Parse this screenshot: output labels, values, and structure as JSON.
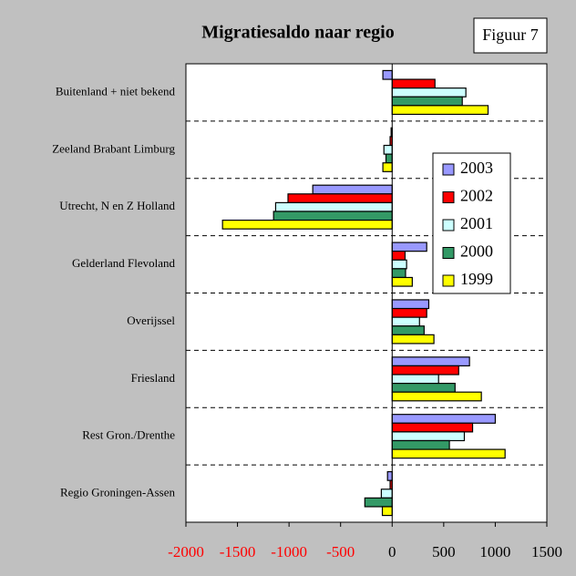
{
  "chart_data": {
    "type": "hbar",
    "title": "Migratiesaldo naar regio",
    "annotation": "Figuur 7",
    "categories": [
      "Buitenland + niet bekend",
      "Zeeland Brabant Limburg",
      "Utrecht, N en Z Holland",
      "Gelderland Flevoland",
      "Overijssel",
      "Friesland",
      "Rest Gron./Drenthe",
      "Regio Groningen-Assen"
    ],
    "series": [
      {
        "name": "2003",
        "color": "#9999ff",
        "values": [
          -90,
          -10,
          -770,
          335,
          355,
          750,
          1000,
          -45
        ]
      },
      {
        "name": "2002",
        "color": "#ff0000",
        "values": [
          415,
          -20,
          -1010,
          125,
          335,
          645,
          780,
          -20
        ]
      },
      {
        "name": "2001",
        "color": "#ccffff",
        "values": [
          715,
          -80,
          -1130,
          140,
          265,
          450,
          700,
          -105
        ]
      },
      {
        "name": "2000",
        "color": "#339966",
        "values": [
          680,
          -60,
          -1150,
          130,
          310,
          610,
          555,
          -265
        ]
      },
      {
        "name": "1999",
        "color": "#ffff00",
        "values": [
          930,
          -90,
          -1645,
          195,
          405,
          865,
          1095,
          -95
        ]
      }
    ],
    "xlim": [
      -2000,
      1500
    ],
    "xticks": [
      -2000,
      -1500,
      -1000,
      -500,
      0,
      500,
      1000,
      1500
    ],
    "negative_tick_color": "#ff0000",
    "legend": "right"
  }
}
